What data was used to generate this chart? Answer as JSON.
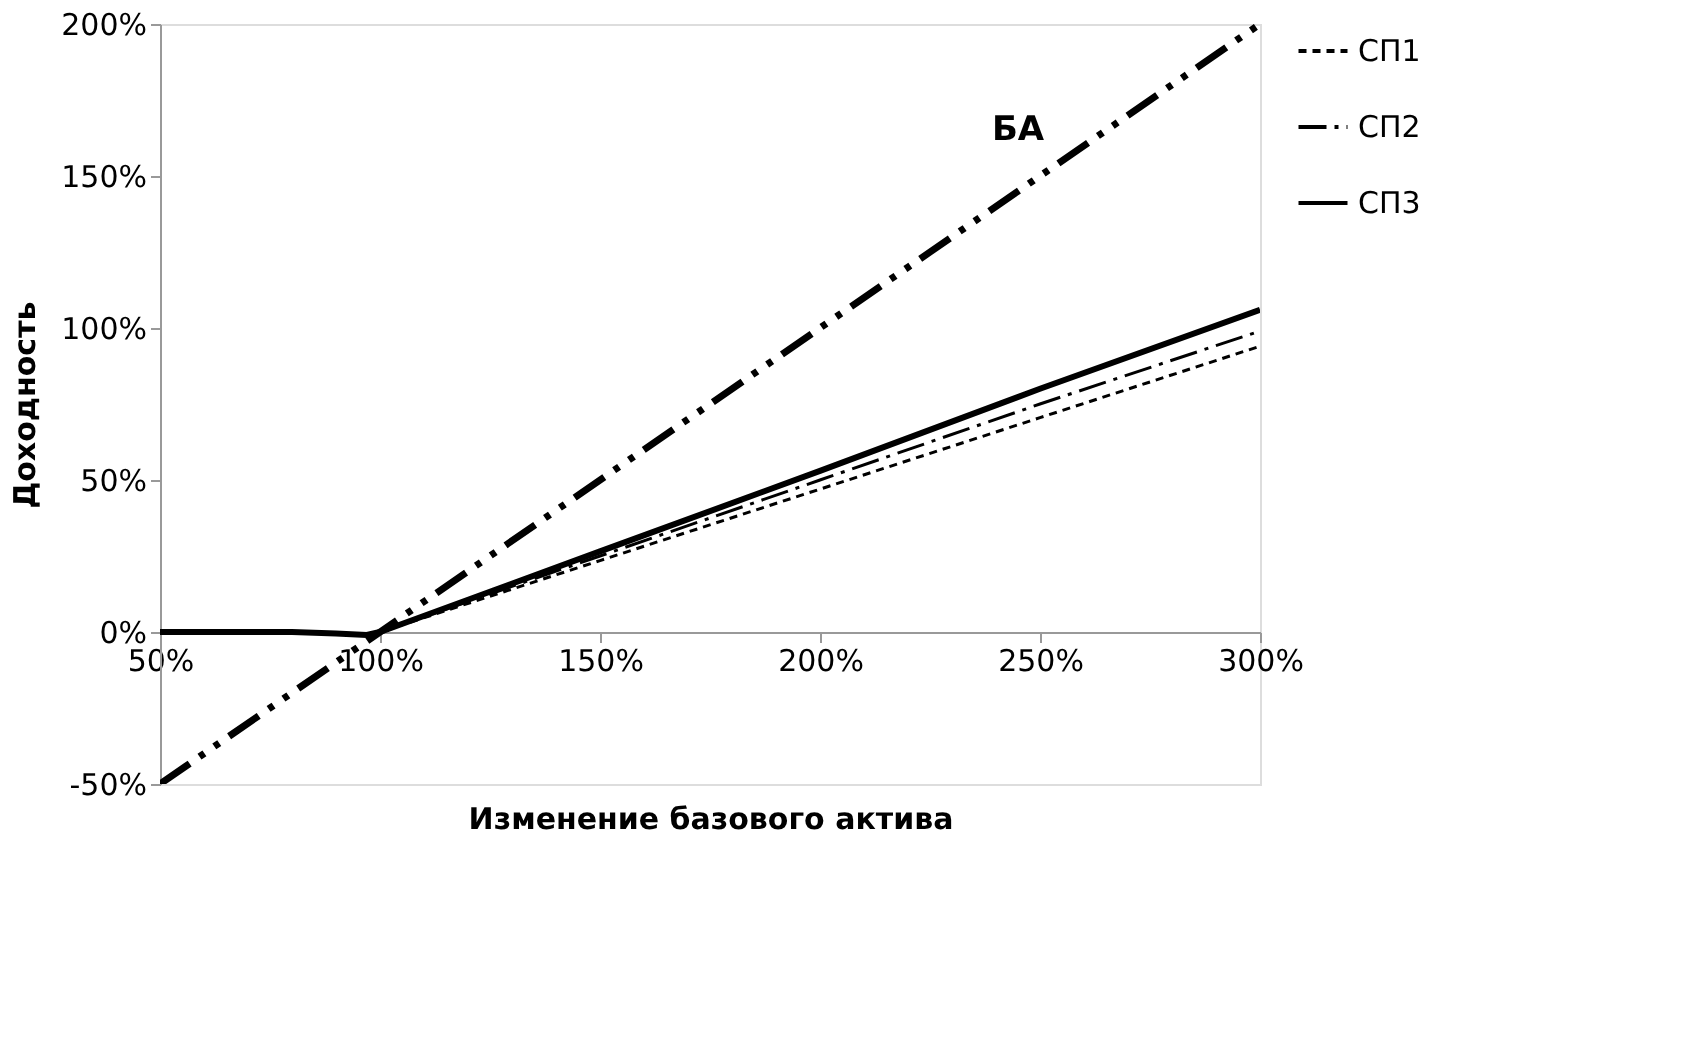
{
  "chart_data": {
    "type": "line",
    "xlabel": "Изменение базового актива",
    "ylabel": "Доходность",
    "xlim": [
      50,
      300
    ],
    "ylim": [
      -50,
      200
    ],
    "xticks": [
      {
        "value": 50,
        "label": "50%"
      },
      {
        "value": 100,
        "label": "100%"
      },
      {
        "value": 150,
        "label": "150%"
      },
      {
        "value": 200,
        "label": "200%"
      },
      {
        "value": 250,
        "label": "250%"
      },
      {
        "value": 300,
        "label": "300%"
      }
    ],
    "yticks": [
      {
        "value": -50,
        "label": "-50%"
      },
      {
        "value": 0,
        "label": "0%"
      },
      {
        "value": 50,
        "label": "50%"
      },
      {
        "value": 100,
        "label": "100%"
      },
      {
        "value": 150,
        "label": "150%"
      },
      {
        "value": 200,
        "label": "200%"
      }
    ],
    "grid": false,
    "legend": "right",
    "marker": "none",
    "series": [
      {
        "name": "СП1",
        "color": "#000000",
        "line_style": "dashed",
        "x": [
          50,
          80,
          90,
          97,
          100,
          150,
          200,
          250,
          300
        ],
        "values": [
          0,
          0,
          -0.5,
          -1,
          0,
          23.5,
          47,
          70.5,
          94
        ]
      },
      {
        "name": "СП2",
        "color": "#000000",
        "line_style": "dashdot",
        "x": [
          50,
          80,
          90,
          97,
          100,
          150,
          200,
          250,
          300
        ],
        "values": [
          0,
          0,
          -0.5,
          -1,
          0,
          25,
          50,
          75,
          99
        ]
      },
      {
        "name": "СП3",
        "color": "#000000",
        "line_style": "solid",
        "x": [
          50,
          80,
          90,
          97,
          100,
          150,
          200,
          250,
          300
        ],
        "values": [
          0,
          0,
          -0.5,
          -1,
          0,
          26.5,
          53,
          80,
          106
        ]
      },
      {
        "color": "#000000",
        "line_style": "dashdotdot",
        "x": [
          50,
          300
        ],
        "values": [
          -50,
          200
        ]
      }
    ],
    "annotations": [
      "БА"
    ]
  }
}
